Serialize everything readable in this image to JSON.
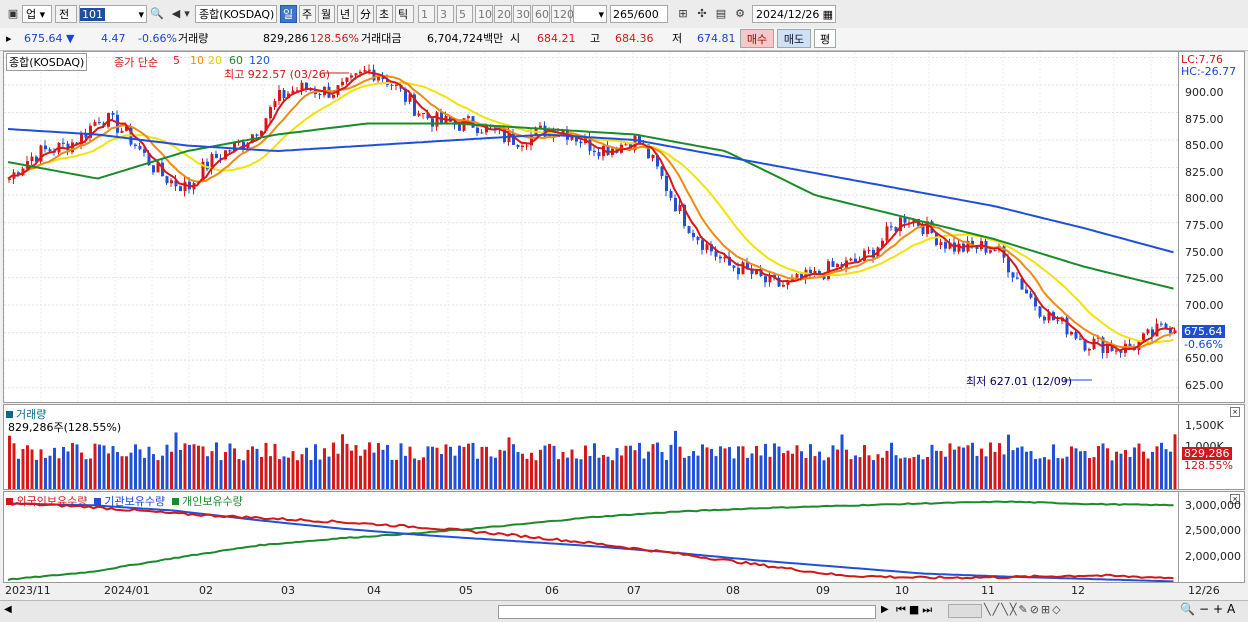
{
  "toolbar": {
    "market": "업",
    "prev_label": "전",
    "code": "101",
    "name": "종합(KOSDAQ)",
    "periods": [
      "일",
      "주",
      "월",
      "년",
      "分",
      "초",
      "틱"
    ],
    "active_period": "일",
    "intervals": [
      "1",
      "3",
      "5",
      "10",
      "20",
      "30",
      "60",
      "120"
    ],
    "count": "265",
    "total": "/600",
    "date": "2024/12/26"
  },
  "quote": {
    "price": "675.64",
    "arrow": "▼",
    "change": "4.47",
    "change_pct": "-0.66%",
    "volume_label": "거래량",
    "volume": "829,286",
    "volume_pct": "128.56%",
    "amount_label": "거래대금",
    "amount": "6,704,724백만",
    "open_label": "시",
    "open": "684.21",
    "high_label": "고",
    "high": "684.36",
    "low_label": "저",
    "low": "674.81",
    "buy_label": "매수",
    "sell_label": "매도",
    "avg_label": "평"
  },
  "price_panel": {
    "title": "종합(KOSDAQ)",
    "ma_label": "종가 단순",
    "ma": [
      "5",
      "10",
      "20",
      "60",
      "120"
    ],
    "high_note": "최고 922.57 (03/26)",
    "low_note": "최저 627.01 (12/09)",
    "lc": "LC:7.76",
    "hc": "HC:-26.77",
    "current": "675.64",
    "current_pct": "-0.66%",
    "yticks": [
      "900.00",
      "875.00",
      "850.00",
      "825.00",
      "800.00",
      "775.00",
      "750.00",
      "725.00",
      "700.00",
      "675.00",
      "650.00",
      "625.00"
    ]
  },
  "volume_panel": {
    "title": "거래량",
    "value": "829,286주(128.55%)",
    "yticks": [
      "1,500K",
      "1,000K"
    ],
    "current": "829,286",
    "current_pct": "128.55%"
  },
  "holding_panel": {
    "legend": [
      "외국인보유수량",
      "기관보유수량",
      "개인보유수량"
    ],
    "yticks": [
      "3,000,000",
      "2,500,000",
      "2,000,000"
    ]
  },
  "xaxis": [
    "2023/11",
    "2024/01",
    "02",
    "03",
    "04",
    "05",
    "06",
    "07",
    "08",
    "09",
    "10",
    "11",
    "12",
    "12/26"
  ],
  "colors": {
    "ma5": "#d81818",
    "ma10": "#f08a10",
    "ma20": "#f2e20a",
    "ma60": "#1b8a2a",
    "ma120": "#2050d8",
    "up": "#d81818",
    "down": "#2050d8"
  },
  "chart_data": {
    "type": "line",
    "title": "종합(KOSDAQ)",
    "x": [
      "2023/11",
      "2024/01",
      "02",
      "03",
      "04",
      "05",
      "06",
      "07",
      "08",
      "09",
      "10",
      "11",
      "12",
      "12/26"
    ],
    "series": [
      {
        "name": "종가",
        "values": [
          815,
          870,
          805,
          885,
          910,
          860,
          855,
          845,
          730,
          720,
          775,
          745,
          660,
          676
        ]
      },
      {
        "name": "60",
        "values": [
          830,
          815,
          840,
          855,
          865,
          865,
          860,
          855,
          840,
          800,
          780,
          760,
          735,
          715
        ]
      },
      {
        "name": "120",
        "values": [
          860,
          855,
          845,
          840,
          845,
          850,
          855,
          850,
          835,
          820,
          805,
          790,
          770,
          748
        ]
      }
    ],
    "ylim": [
      612,
      930
    ]
  }
}
